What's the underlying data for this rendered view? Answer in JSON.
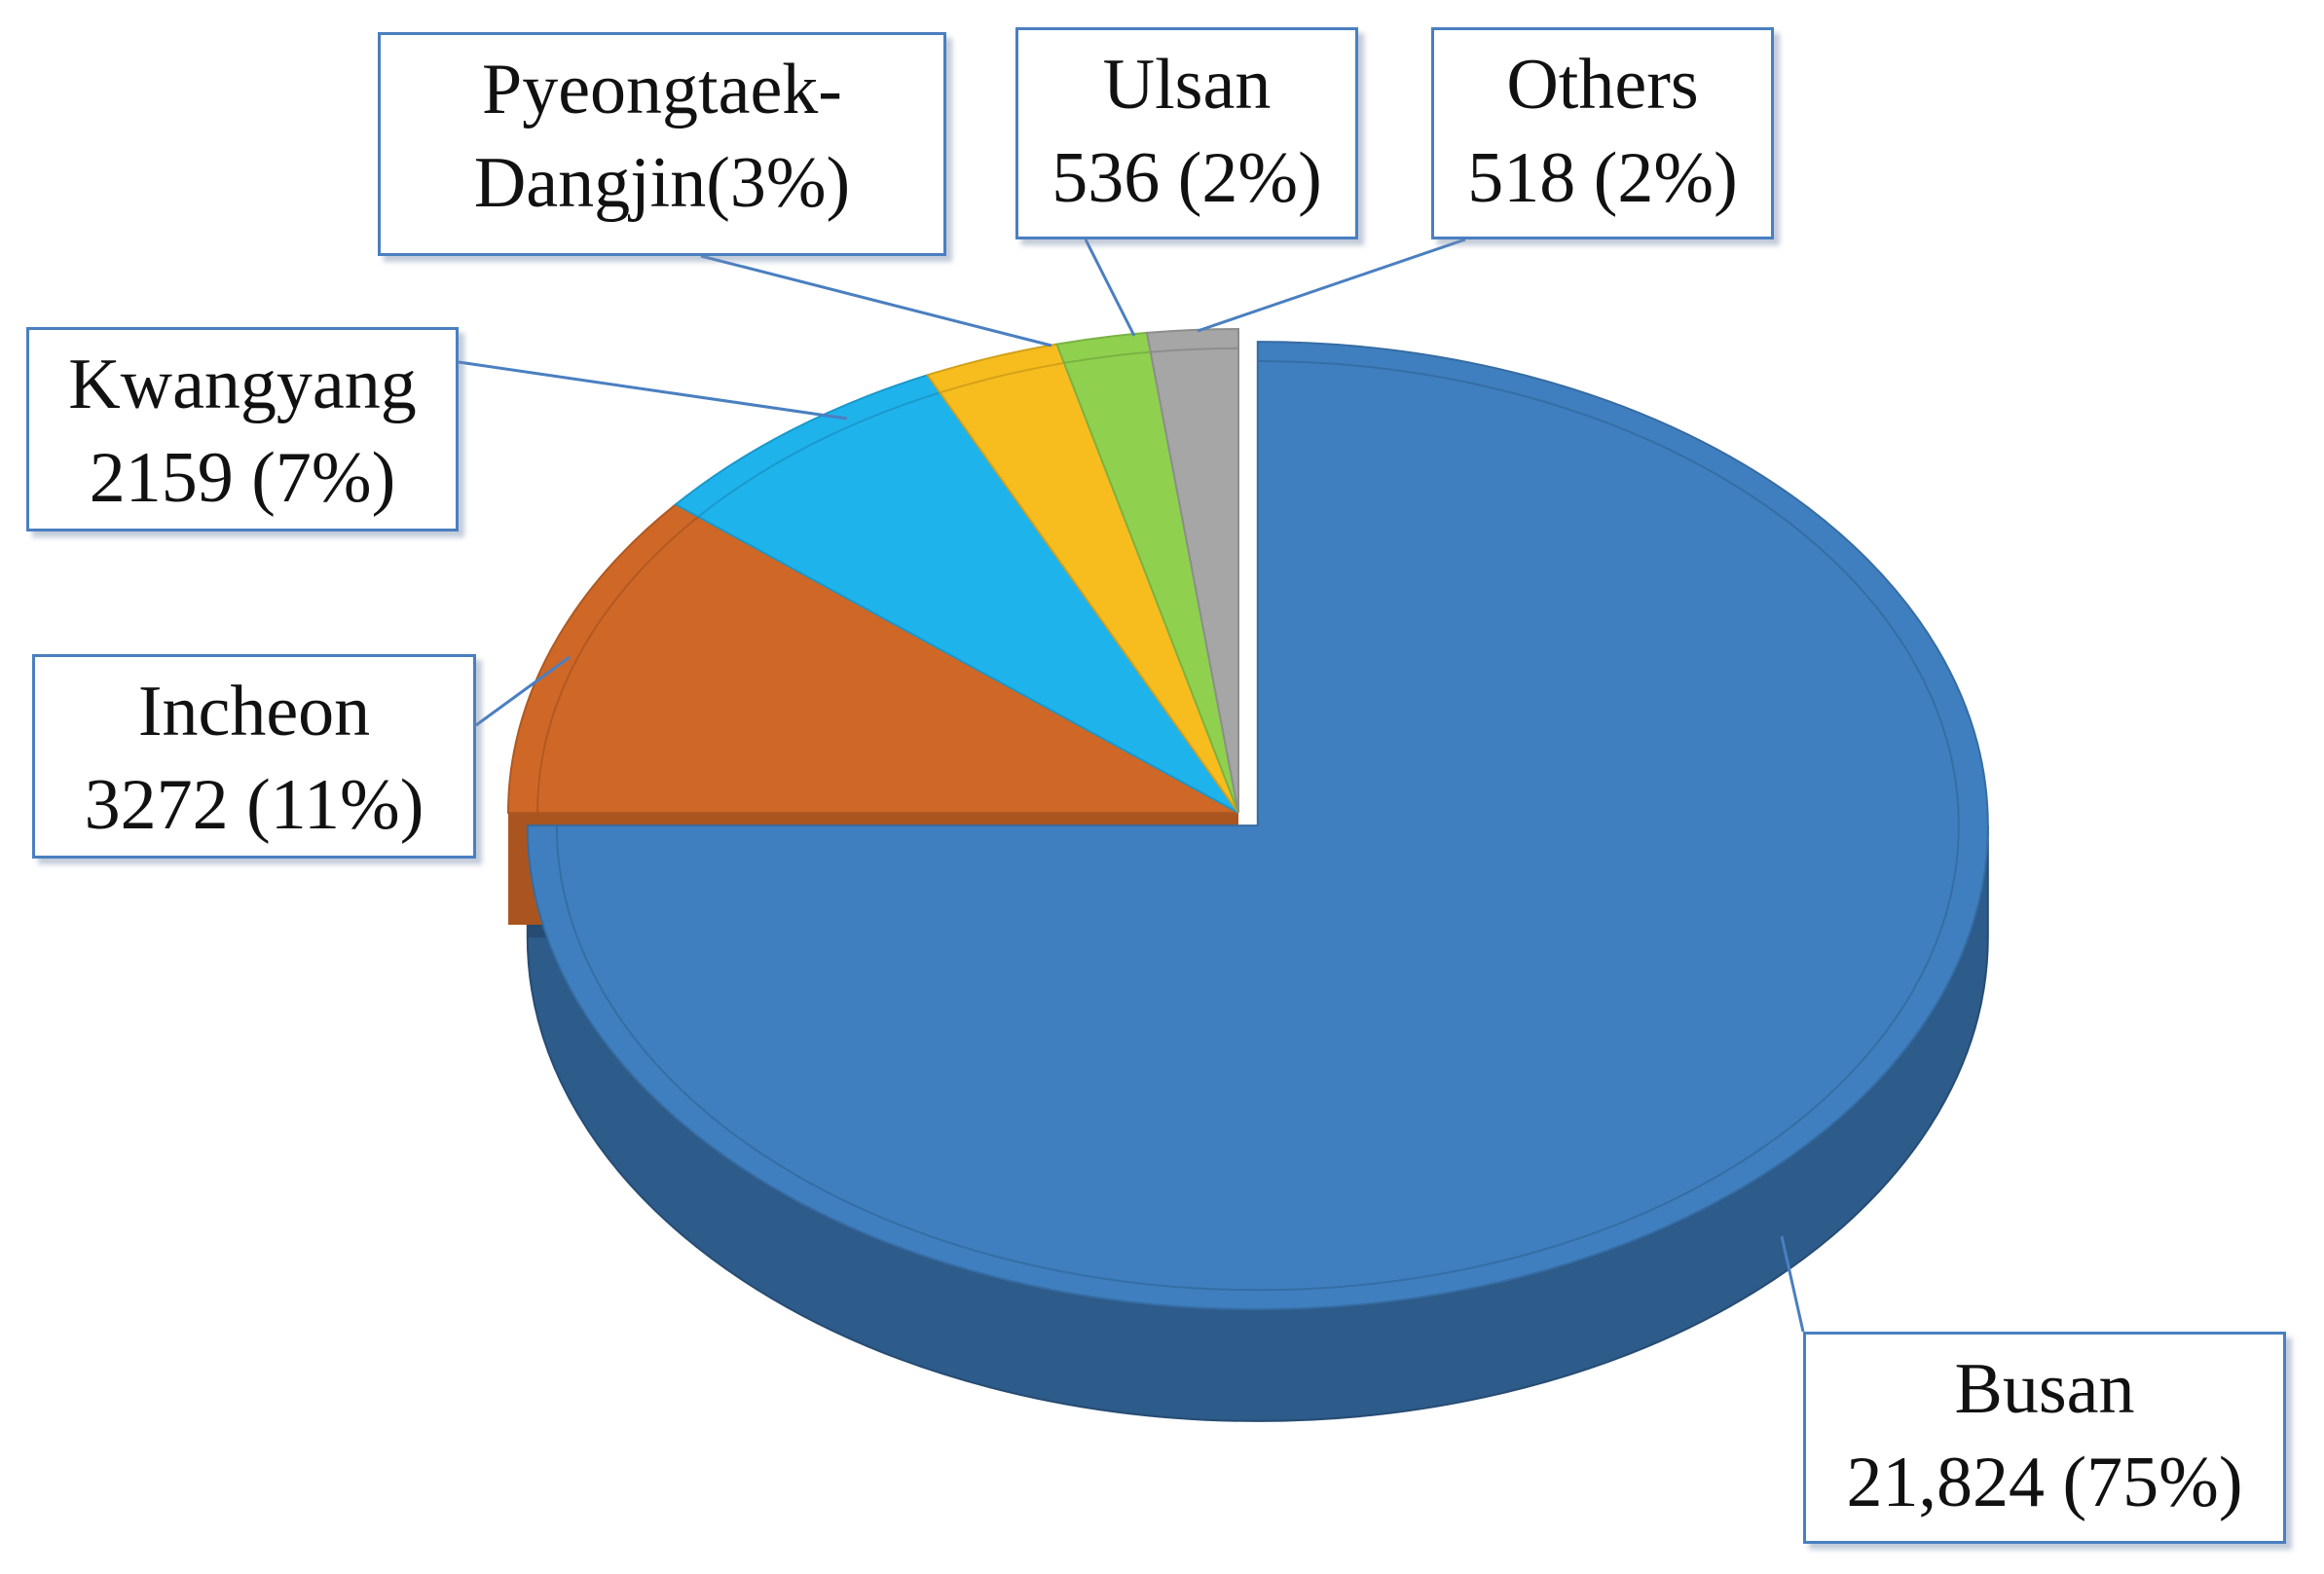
{
  "chart_data": {
    "type": "pie",
    "title": "",
    "style": "3d-exploded-slice-with-callouts",
    "slices": [
      {
        "key": "busan",
        "label": "Busan",
        "value_text": "21,824 (75%)",
        "value": 21824,
        "percent": 75,
        "color": "#3f7fbf"
      },
      {
        "key": "incheon",
        "label": "Incheon",
        "value_text": "3272 (11%)",
        "value": 3272,
        "percent": 11,
        "color": "#cf6827"
      },
      {
        "key": "kwangyang",
        "label": "Kwangyang",
        "value_text": "2159 (7%)",
        "value": 2159,
        "percent": 7,
        "color": "#1fb3ec"
      },
      {
        "key": "pyeongtaek",
        "label": "Pyeongtaek-",
        "label2": "Dangjin",
        "value_text": "(3%)",
        "percent": 3,
        "color": "#f7bd1e"
      },
      {
        "key": "ulsan",
        "label": "Ulsan",
        "value_text": "536 (2%)",
        "value": 536,
        "percent": 2,
        "color": "#8fd14f"
      },
      {
        "key": "others",
        "label": "Others",
        "value_text": "518 (2%)",
        "value": 518,
        "percent": 2,
        "color": "#a6a6a6"
      }
    ],
    "callout_border_color": "#4a7fc1"
  }
}
